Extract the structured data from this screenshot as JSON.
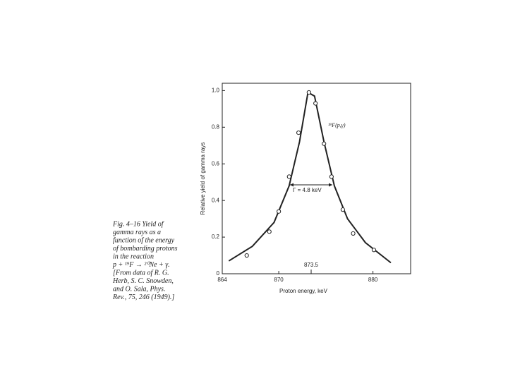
{
  "chart_data": {
    "type": "scatter",
    "xlabel": "Proton energy, keV",
    "ylabel": "Relative yield of gamma rays",
    "x": [
      866.6,
      869.0,
      870.0,
      871.1,
      872.1,
      873.2,
      873.9,
      874.8,
      875.6,
      876.8,
      877.9,
      880.1
    ],
    "values": [
      0.1,
      0.23,
      0.34,
      0.53,
      0.77,
      0.99,
      0.93,
      0.71,
      0.53,
      0.35,
      0.22,
      0.13
    ],
    "curve_x": [
      864.7,
      867.2,
      869.5,
      871.1,
      872.2,
      873.1,
      873.8,
      874.8,
      875.9,
      877.3,
      879.2,
      881.9
    ],
    "curve_y": [
      0.07,
      0.15,
      0.28,
      0.48,
      0.72,
      0.99,
      0.97,
      0.72,
      0.48,
      0.3,
      0.17,
      0.06
    ],
    "color": "#222222",
    "xlim": [
      864,
      884
    ],
    "xticks": [
      864,
      870,
      880
    ],
    "ylim": [
      0,
      1.04
    ],
    "yticks": [
      0,
      0.2,
      0.4,
      0.6,
      0.8,
      {
        "value": 1,
        "label": "1.0"
      }
    ],
    "annotations": [
      "¹⁹F(p,γ)",
      "Γ = 4.8 keV",
      "873.5"
    ]
  },
  "caption": [
    "Fig. 4–16   Yield of",
    "gamma rays as a",
    "function of the energy",
    "of bombarding protons",
    "in the reaction",
    "p + ¹⁹F → ²⁰Ne + γ.",
    "[From data of R. G.",
    "Herb, S. C. Snowden,",
    "and O. Sala, Phys.",
    "Rev., 75, 246 (1949).]"
  ]
}
